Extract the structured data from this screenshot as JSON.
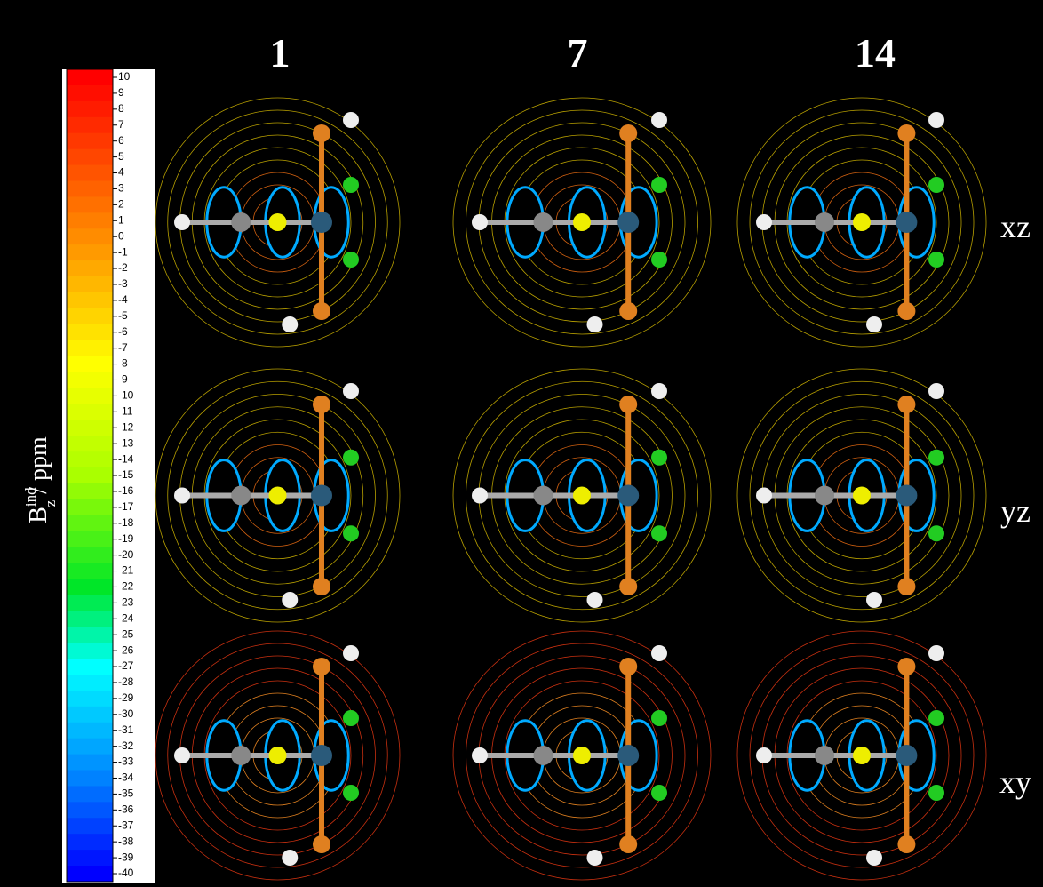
{
  "colorbar": {
    "label": {
      "base": "B",
      "superscript": "ind",
      "subscript": "z",
      "unit": " / ppm"
    },
    "ticks": [
      10,
      9,
      8,
      7,
      6,
      5,
      4,
      3,
      2,
      1,
      0,
      -1,
      -2,
      -3,
      -4,
      -5,
      -6,
      -7,
      -8,
      -9,
      -10,
      -11,
      -12,
      -13,
      -14,
      -15,
      -16,
      -17,
      -18,
      -19,
      -20,
      -21,
      -22,
      -23,
      -24,
      -25,
      -26,
      -27,
      -28,
      -29,
      -30,
      -31,
      -32,
      -33,
      -34,
      -35,
      -36,
      -37,
      -38,
      -39,
      -40
    ]
  },
  "columns": [
    "1",
    "7",
    "14"
  ],
  "rows": [
    "xz",
    "yz",
    "xy"
  ]
}
